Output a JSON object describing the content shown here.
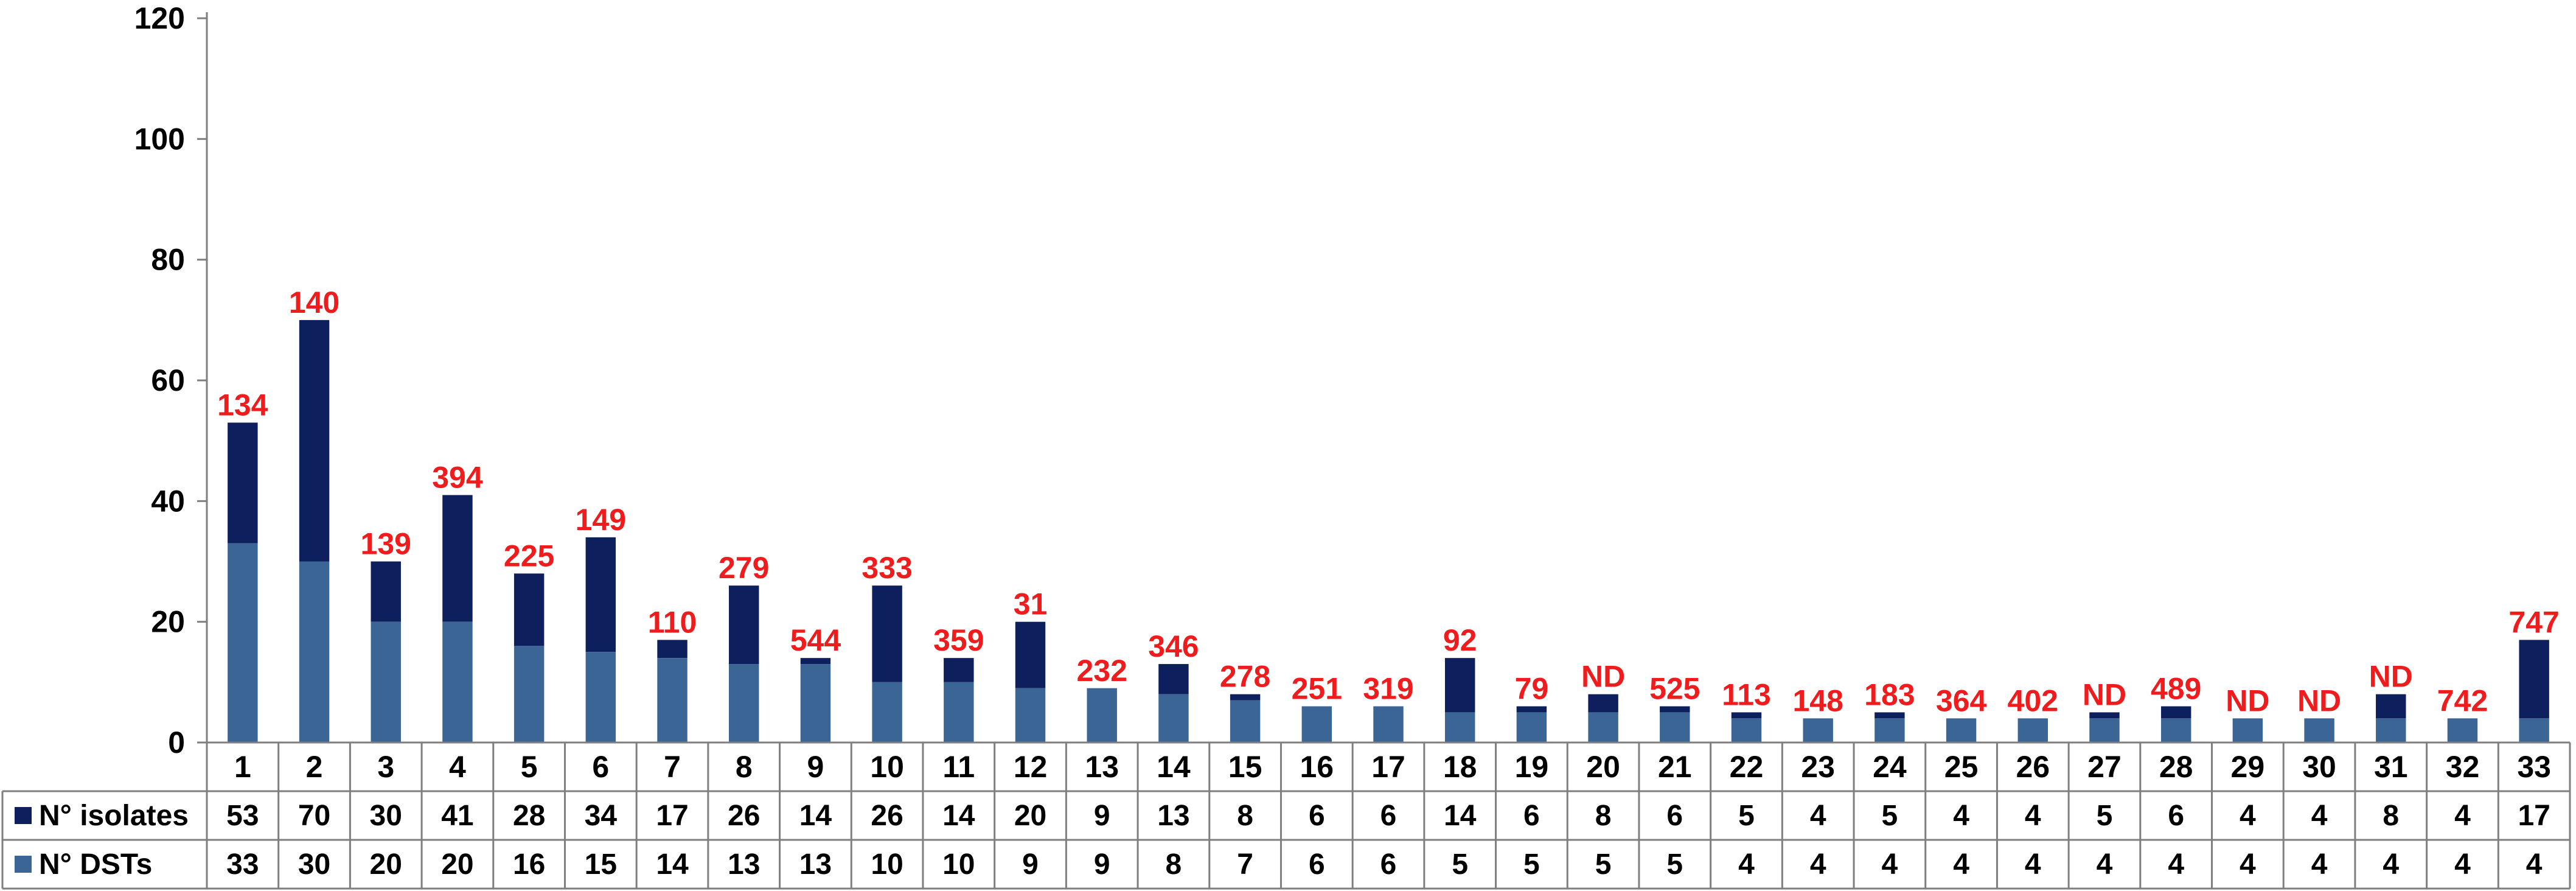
{
  "chart_data": {
    "type": "bar",
    "stacked": true,
    "categories": [
      "1",
      "2",
      "3",
      "4",
      "5",
      "6",
      "7",
      "8",
      "9",
      "10",
      "11",
      "12",
      "13",
      "14",
      "15",
      "16",
      "17",
      "18",
      "19",
      "20",
      "21",
      "22",
      "23",
      "24",
      "25",
      "26",
      "27",
      "28",
      "29",
      "30",
      "31",
      "32",
      "33"
    ],
    "series": [
      {
        "name": "N° isolates",
        "color": "#0d1f5c",
        "values": [
          53,
          70,
          30,
          41,
          28,
          34,
          17,
          26,
          14,
          26,
          14,
          20,
          9,
          13,
          8,
          6,
          6,
          14,
          6,
          8,
          6,
          5,
          4,
          5,
          4,
          4,
          5,
          6,
          4,
          4,
          8,
          4,
          17
        ]
      },
      {
        "name": "N° DSTs",
        "color": "#3a6595",
        "values": [
          33,
          30,
          20,
          20,
          16,
          15,
          14,
          13,
          13,
          10,
          10,
          9,
          9,
          8,
          7,
          6,
          6,
          5,
          5,
          5,
          5,
          4,
          4,
          4,
          4,
          4,
          4,
          4,
          4,
          4,
          4,
          4,
          4
        ]
      }
    ],
    "top_labels": [
      "134",
      "140",
      "139",
      "394",
      "225",
      "149",
      "110",
      "279",
      "544",
      "333",
      "359",
      "31",
      "232",
      "346",
      "278",
      "251",
      "319",
      "92",
      "79",
      "ND",
      "525",
      "113",
      "148",
      "183",
      "364",
      "402",
      "ND",
      "489",
      "ND",
      "ND",
      "ND",
      "742",
      "747"
    ],
    "top_label_color": "#ee1c1c",
    "ylim": [
      0,
      120
    ],
    "yticks": [
      0,
      20,
      40,
      60,
      80,
      100,
      120
    ],
    "grid": false,
    "legend": "data-table-left"
  }
}
